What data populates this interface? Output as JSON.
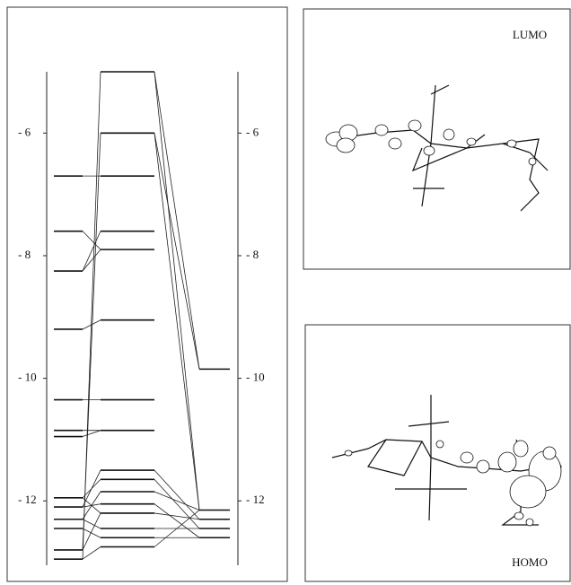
{
  "energy_diagram": {
    "ylim": [
      -13.05,
      -5
    ],
    "ticks": [
      {
        "value": -6,
        "label": "- 6"
      },
      {
        "value": -8,
        "label": "- 8"
      },
      {
        "value": -10,
        "label": "- 10"
      },
      {
        "value": -12,
        "label": "- 12"
      }
    ],
    "levels": {
      "left": [
        -6.7,
        -7.6,
        -8.25,
        -9.2,
        -10.35,
        -10.85,
        -10.95,
        -11.95,
        -12.1,
        -12.3,
        -12.45,
        -12.8,
        -12.95
      ],
      "center": [
        -5,
        -6,
        -6.7,
        -7.6,
        -7.9,
        -9.05,
        -10.35,
        -10.85,
        -11.5,
        -11.65,
        -11.85,
        -12.05,
        -12.2,
        -12.45,
        -12.6,
        -12.75
      ],
      "right": [
        -9.85,
        -12.15,
        -12.3,
        -12.45,
        -12.6
      ]
    },
    "left_connections": [
      [
        0,
        2
      ],
      [
        1,
        4
      ],
      [
        2,
        3
      ],
      [
        2,
        4
      ],
      [
        3,
        5
      ],
      [
        4,
        6
      ],
      [
        5,
        7
      ],
      [
        6,
        7
      ],
      [
        7,
        9
      ],
      [
        7,
        12
      ],
      [
        8,
        11
      ],
      [
        8,
        8
      ],
      [
        9,
        13
      ],
      [
        9,
        10
      ],
      [
        10,
        14
      ],
      [
        11,
        12
      ],
      [
        12,
        15
      ],
      [
        12,
        0
      ],
      [
        11,
        1
      ]
    ],
    "right_connections": [
      [
        0,
        0
      ],
      [
        1,
        0
      ],
      [
        0,
        1
      ],
      [
        1,
        1
      ],
      [
        8,
        2
      ],
      [
        9,
        3
      ],
      [
        10,
        1
      ],
      [
        11,
        4
      ],
      [
        12,
        2
      ],
      [
        13,
        3
      ],
      [
        14,
        4
      ],
      [
        15,
        1
      ]
    ]
  },
  "panels": [
    {
      "label": "LUMO"
    },
    {
      "label": "HOMO"
    }
  ]
}
